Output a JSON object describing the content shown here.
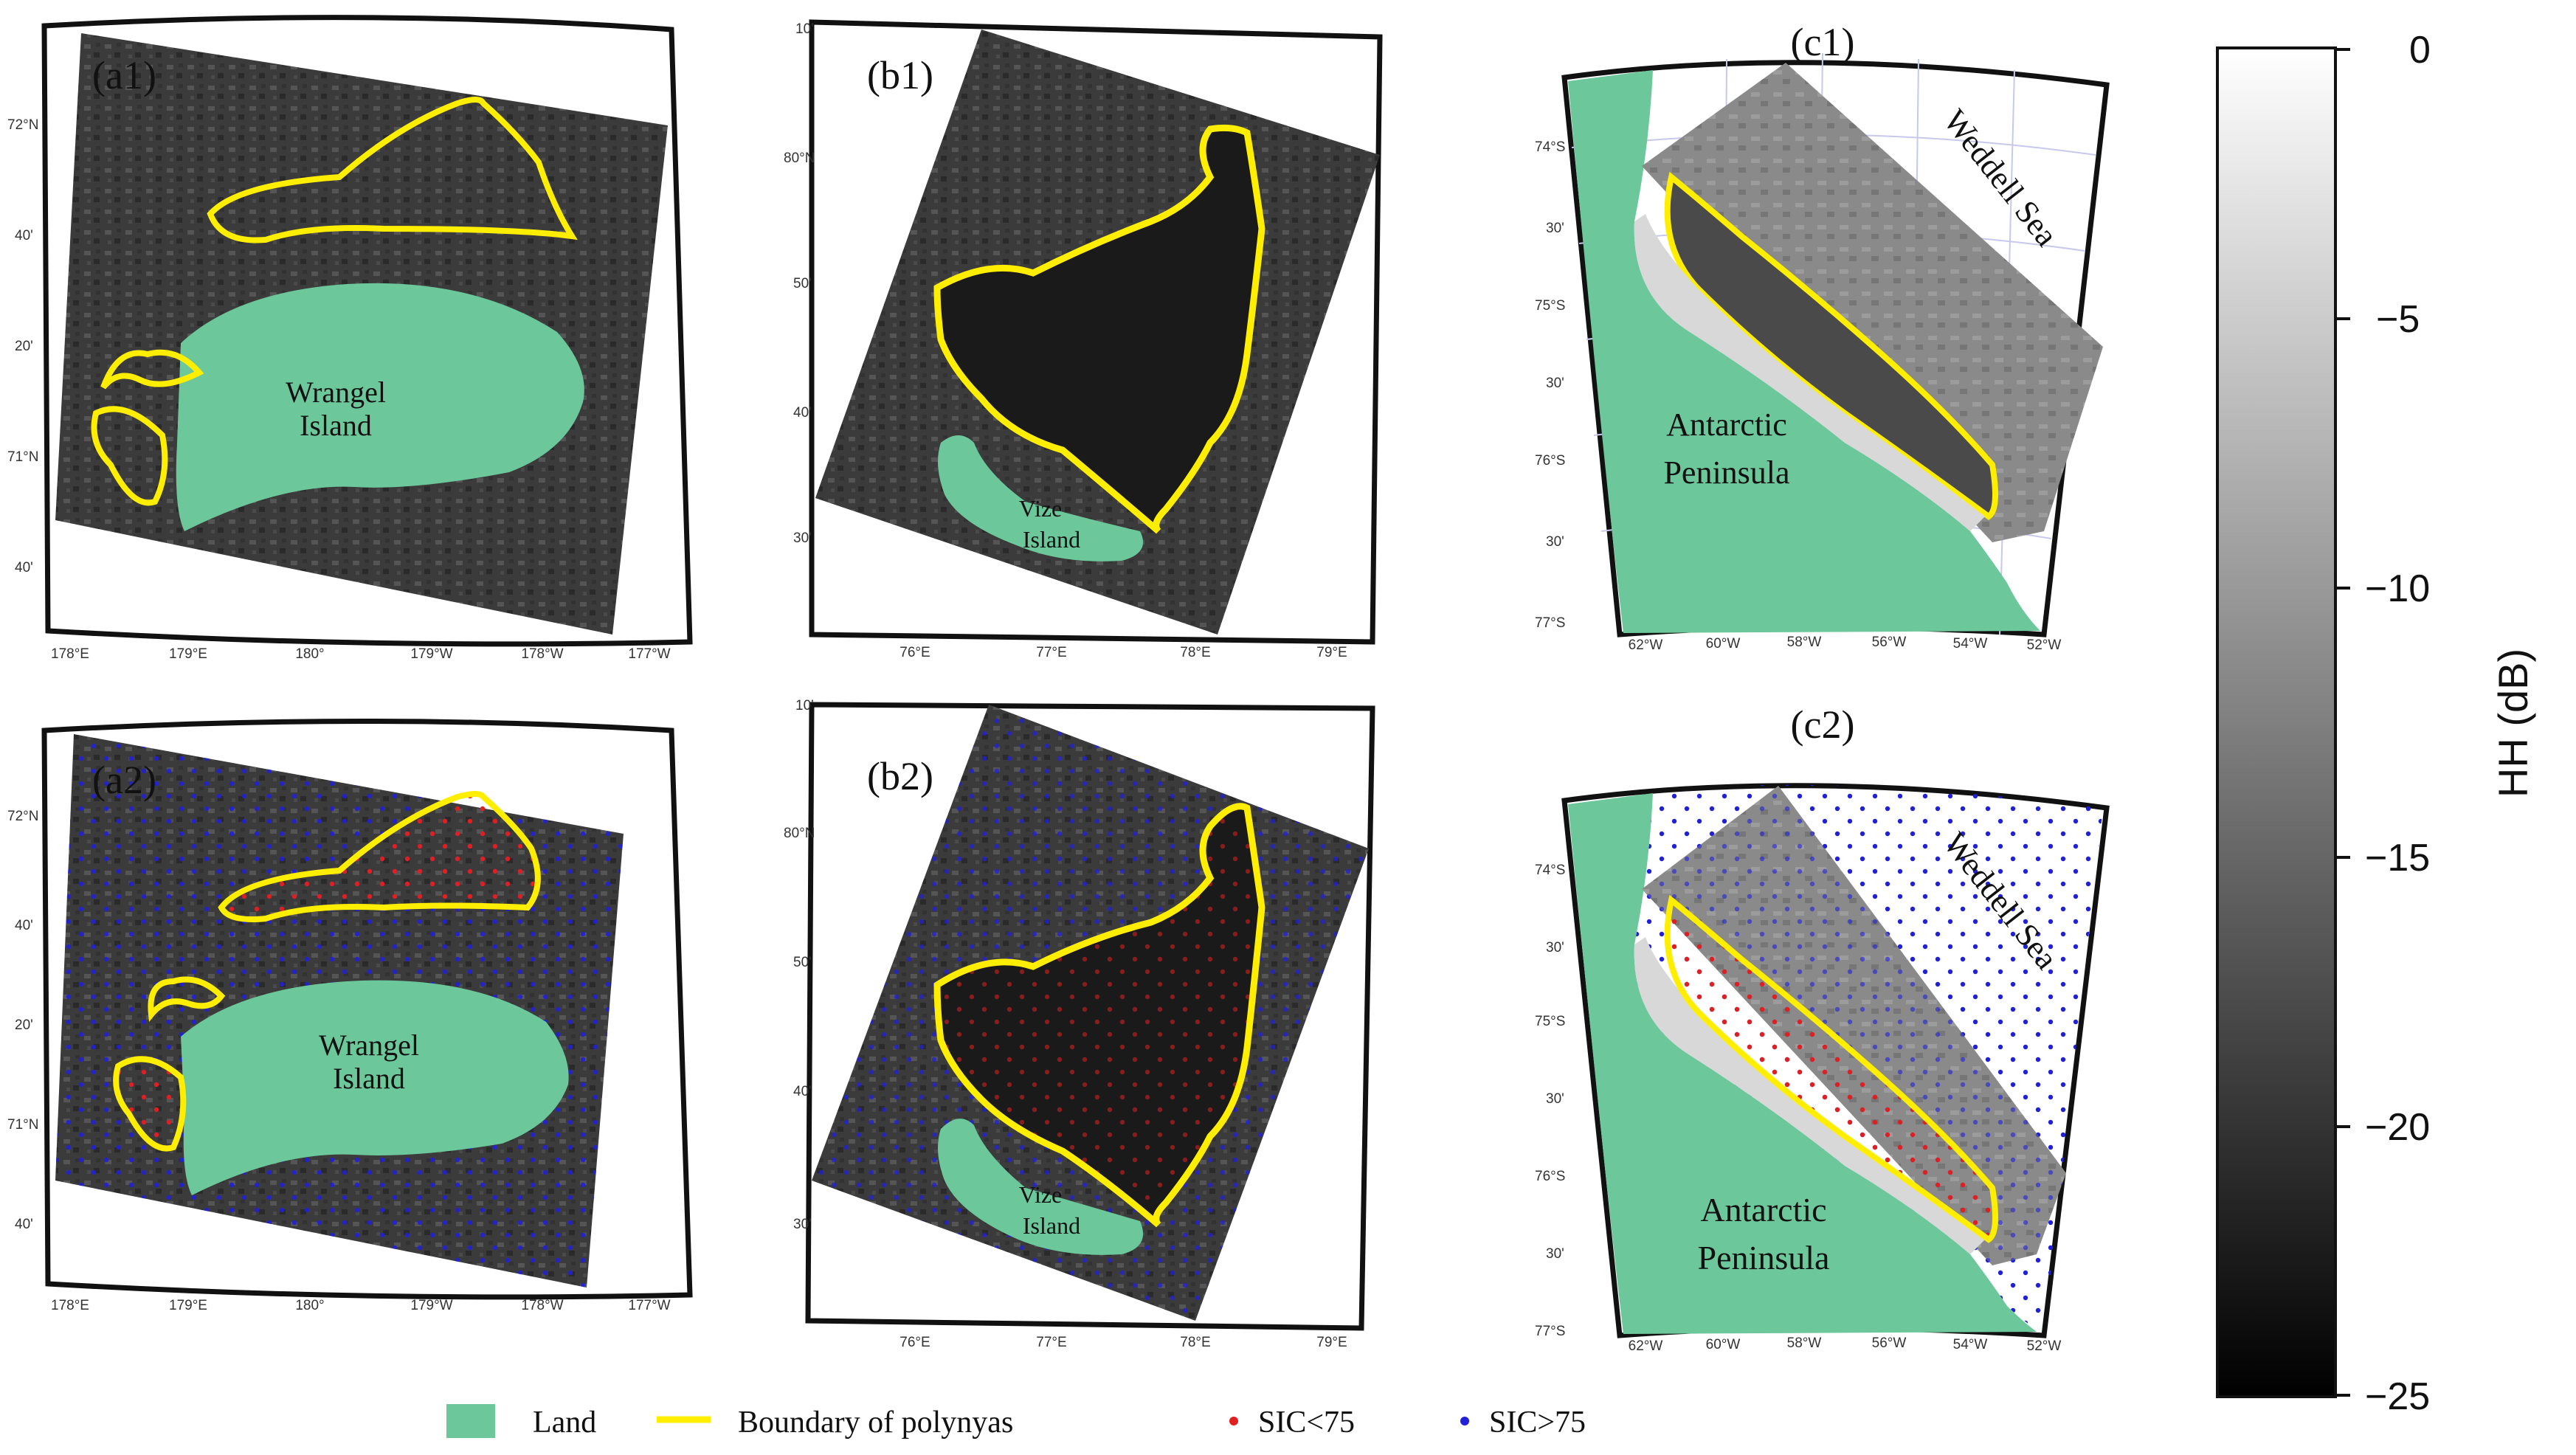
{
  "panels": {
    "a1": {
      "label": "(a1)",
      "place": [
        "Wrangel",
        "Island"
      ],
      "lat": [
        "72°N",
        "40'",
        "20'",
        "71°N",
        "40'"
      ],
      "lon": [
        "178°E",
        "179°E",
        "180°",
        "179°W",
        "178°W",
        "177°W"
      ]
    },
    "a2": {
      "label": "(a2)",
      "place": [
        "Wrangel",
        "Island"
      ],
      "lat": [
        "72°N",
        "40'",
        "20'",
        "71°N",
        "40'"
      ],
      "lon": [
        "178°E",
        "179°E",
        "180°",
        "179°W",
        "178°W",
        "177°W"
      ]
    },
    "b1": {
      "label": "(b1)",
      "place": [
        "Vize",
        "Island"
      ],
      "lat": [
        "10'",
        "80°N",
        "50'",
        "40'",
        "30'"
      ],
      "lon": [
        "76°E",
        "77°E",
        "78°E",
        "79°E"
      ]
    },
    "b2": {
      "label": "(b2)",
      "place": [
        "Vize",
        "Island"
      ],
      "lat": [
        "10'",
        "80°N",
        "50'",
        "40'",
        "30'"
      ],
      "lon": [
        "76°E",
        "77°E",
        "78°E",
        "79°E"
      ]
    },
    "c1": {
      "label": "(c1)",
      "place": [
        "Antarctic",
        "Peninsula"
      ],
      "sea": "Weddell Sea",
      "lat": [
        "74°S",
        "30'",
        "75°S",
        "30'",
        "76°S",
        "30'",
        "77°S"
      ],
      "lon": [
        "62°W",
        "60°W",
        "58°W",
        "56°W",
        "54°W",
        "52°W"
      ]
    },
    "c2": {
      "label": "(c2)",
      "place": [
        "Antarctic",
        "Peninsula"
      ],
      "sea": "Weddell Sea",
      "lat": [
        "74°S",
        "30'",
        "75°S",
        "30'",
        "76°S",
        "30'",
        "77°S"
      ],
      "lon": [
        "62°W",
        "60°W",
        "58°W",
        "56°W",
        "54°W",
        "52°W"
      ]
    }
  },
  "legend": {
    "land": "Land",
    "boundary": "Boundary of polynyas",
    "sic_low": "SIC<75",
    "sic_high": "SIC>75"
  },
  "colorbar": {
    "label": "HH (dB)",
    "ticks": [
      "0",
      "−5",
      "−10",
      "−15",
      "−20",
      "−25"
    ],
    "range": [
      0,
      -25
    ]
  },
  "colors": {
    "land": "#6cc79a",
    "boundary": "#ffee00",
    "sic_low": "#e02020",
    "sic_high": "#2020d8"
  }
}
